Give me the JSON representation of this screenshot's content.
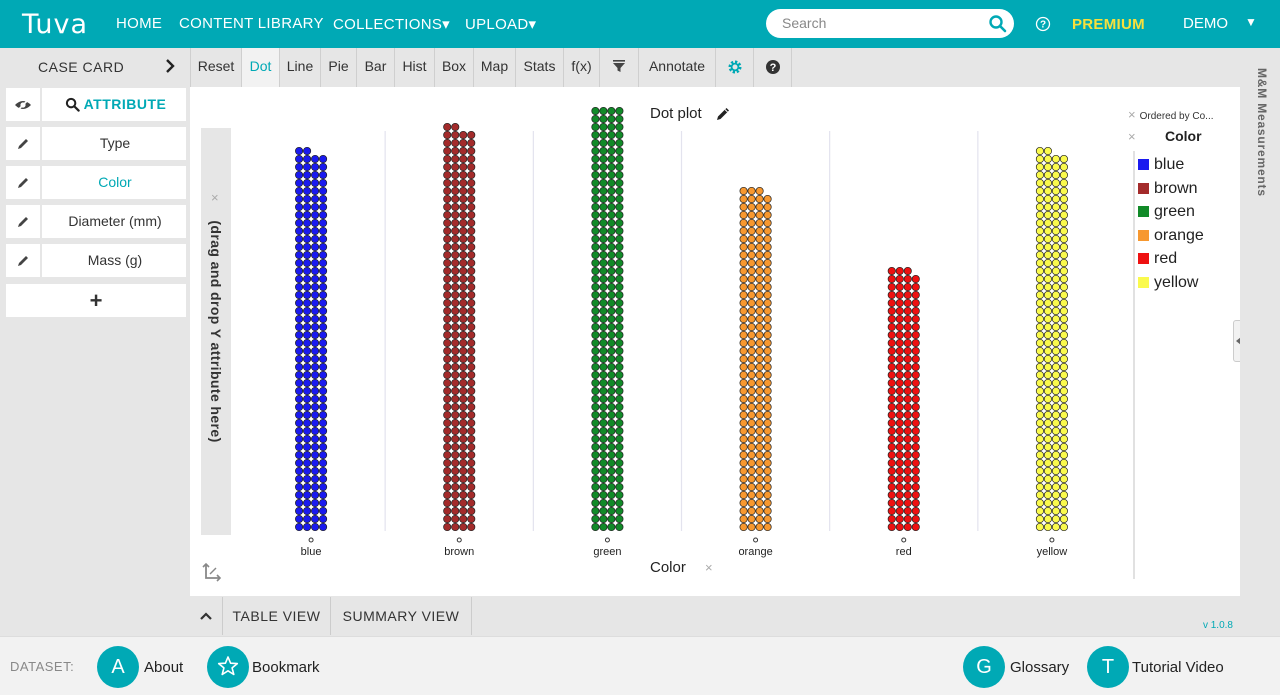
{
  "nav": {
    "logo_text": "Tuva",
    "home": "HOME",
    "content_library": "CONTENT LIBRARY",
    "collections": "COLLECTIONS▾",
    "upload": "UPLOAD▾",
    "search_placeholder": "Search",
    "premium": "PREMIUM",
    "user": "DEMO",
    "user_caret": "▼"
  },
  "sidebar": {
    "case_card": "CASE CARD",
    "attribute_header": "ATTRIBUTE",
    "attributes": [
      "Type",
      "Color",
      "Diameter (mm)",
      "Mass (g)"
    ],
    "active_attribute": "Color",
    "add": "+"
  },
  "toolbar": {
    "buttons": [
      "Reset",
      "Dot",
      "Line",
      "Pie",
      "Bar",
      "Hist",
      "Box",
      "Map",
      "Stats",
      "f(x)"
    ],
    "annotate": "Annotate",
    "active": "Dot"
  },
  "graph": {
    "title": "Dot plot",
    "y_drop_text": "(drag and drop Y attribute here)",
    "x_axis_label": "Color",
    "legend_ordered": "Ordered by Co...",
    "legend_title": "Color",
    "remove_symbol": "×"
  },
  "chart_data": {
    "type": "scatter",
    "subtype": "dot plot (stacked dots per category)",
    "xlabel": "Color",
    "categories": [
      "blue",
      "brown",
      "green",
      "orange",
      "red",
      "yellow"
    ],
    "counts": [
      190,
      202,
      212,
      171,
      131,
      190
    ],
    "colors": [
      "#1a1aef",
      "#a32b2b",
      "#118a28",
      "#f7982f",
      "#ee1111",
      "#fafa4d"
    ],
    "legend_position": "top-right"
  },
  "right_rail": {
    "label": "M&M Measurements"
  },
  "views": {
    "table": "TABLE VIEW",
    "summary": "SUMMARY VIEW",
    "version": "v 1.0.8"
  },
  "footer": {
    "dataset": "DATASET:",
    "about_letter": "A",
    "about": "About",
    "bookmark": "Bookmark",
    "glossary_letter": "G",
    "glossary": "Glossary",
    "tutorial_letter": "T",
    "tutorial": "Tutorial Video"
  }
}
